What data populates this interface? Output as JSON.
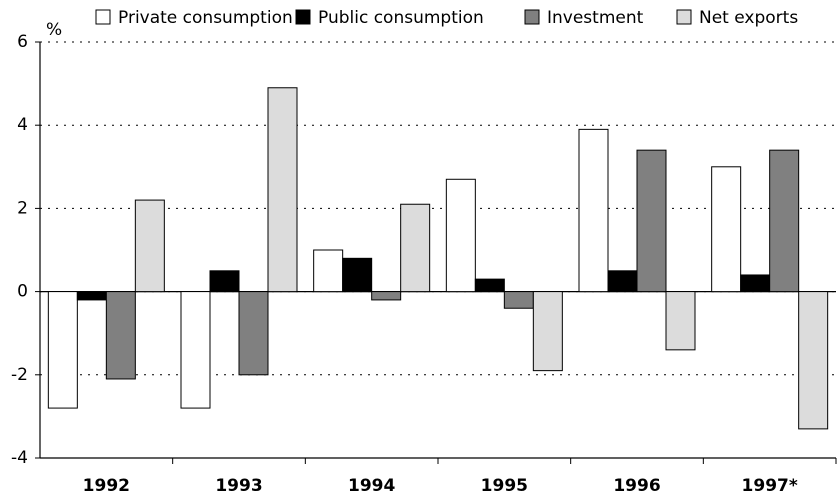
{
  "chart_data": {
    "type": "bar",
    "y_label": "%",
    "categories": [
      "1992",
      "1993",
      "1994",
      "1995",
      "1996",
      "1997*"
    ],
    "series": [
      {
        "name": "Private consumption",
        "color": "#ffffff",
        "values": [
          -2.8,
          -2.8,
          1.0,
          2.7,
          3.9,
          3.0
        ]
      },
      {
        "name": "Public consumption",
        "color": "#000000",
        "values": [
          -0.2,
          0.5,
          0.8,
          0.3,
          0.5,
          0.4
        ]
      },
      {
        "name": "Investment",
        "color": "#808080",
        "values": [
          -2.1,
          -2.0,
          -0.2,
          -0.4,
          3.4,
          3.4
        ]
      },
      {
        "name": "Net exports",
        "color": "#dcdcdc",
        "values": [
          2.2,
          4.9,
          2.1,
          -1.9,
          -1.4,
          -3.3
        ]
      }
    ],
    "ylim": [
      -4,
      6
    ],
    "yticks": [
      -4,
      -2,
      0,
      2,
      4,
      6
    ],
    "grid": true
  }
}
